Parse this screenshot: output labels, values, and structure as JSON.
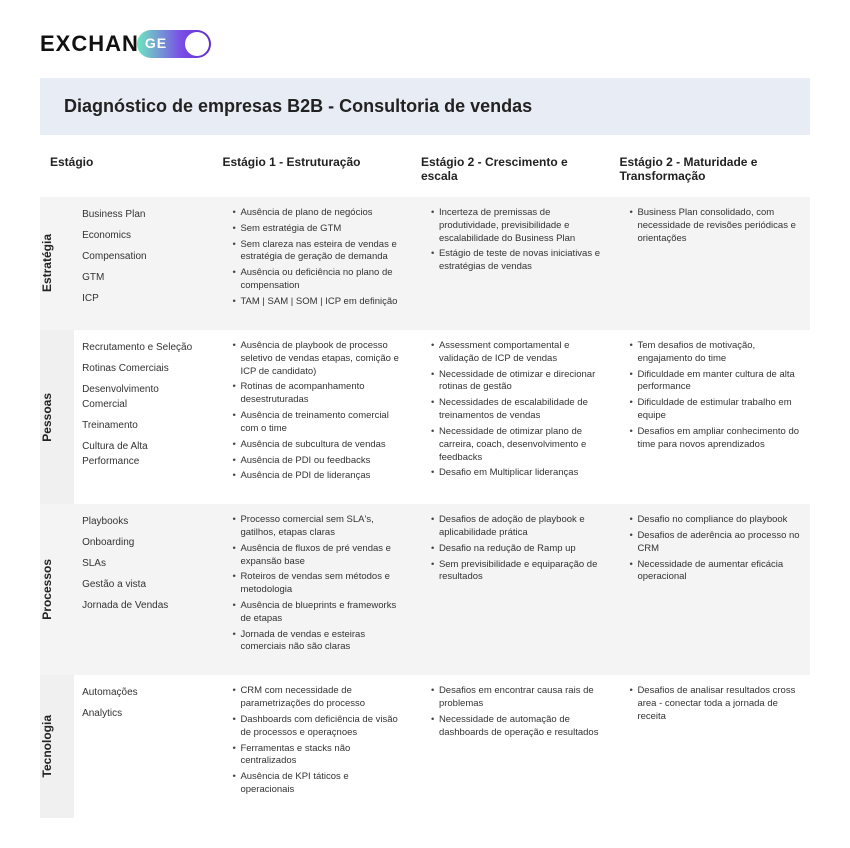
{
  "logo": {
    "left": "EXCHAN",
    "badge": "GE"
  },
  "title": "Diagnóstico de empresas B2B - Consultoria de vendas",
  "headers": {
    "stage": "Estágio",
    "s1": "Estágio 1 - Estruturação",
    "s2": "Estágio 2 - Crescimento e escala",
    "s3": "Estágio 2 - Maturidade e Transformação"
  },
  "rows": [
    {
      "label": "Estratégia",
      "sub": [
        "Business Plan",
        "Economics",
        "Compensation",
        "GTM",
        "ICP"
      ],
      "s1": [
        "Ausência de plano de negócios",
        "Sem estratégia de GTM",
        "Sem clareza nas esteira de vendas e estratégia de geração de demanda",
        "Ausência ou deficiência no plano de compensation",
        "TAM | SAM | SOM | ICP em definição"
      ],
      "s2": [
        "Incerteza de premissas de produtividade, previsibilidade e escalabilidade do Business Plan",
        "Estágio de teste de novas iniciativas e estratégias de vendas"
      ],
      "s3": [
        "Business Plan consolidado, com necessidade de revisões periódicas e orientações"
      ]
    },
    {
      "label": "Pessoas",
      "sub": [
        "Recrutamento e Seleção",
        "Rotinas Comerciais",
        "Desenvolvimento Comercial",
        "Treinamento",
        "Cultura de Alta Performance"
      ],
      "s1": [
        "Ausência de playbook de processo seletivo de vendas etapas, comição e ICP de candidato)",
        "Rotinas de acompanhamento desestruturadas",
        "Ausência de treinamento comercial com o time",
        "Ausência de subcultura de vendas",
        "Ausência de PDI ou feedbacks",
        "Ausência de PDI de lideranças"
      ],
      "s2": [
        "Assessment comportamental e validação de ICP de vendas",
        "Necessidade de otimizar e direcionar rotinas de gestão",
        "Necessidades de escalabilidade de treinamentos de vendas",
        "Necessidade de otimizar plano de carreira, coach, desenvolvimento e feedbacks",
        "Desafio em Multiplicar lideranças"
      ],
      "s3": [
        "Tem desafios de motivação, engajamento do time",
        "Dificuldade em manter cultura de alta performance",
        "Dificuldade de estimular trabalho em equipe",
        "Desafios em ampliar conhecimento do time para novos aprendizados"
      ]
    },
    {
      "label": "Processos",
      "sub": [
        "Playbooks",
        "Onboarding",
        "SLAs",
        "Gestão a vista",
        "Jornada de Vendas"
      ],
      "s1": [
        "Processo comercial sem SLA's, gatilhos, etapas claras",
        "Ausência de fluxos de pré vendas e expansão base",
        "Roteiros de vendas sem métodos e metodologia",
        "Ausência de blueprints e frameworks de etapas",
        "Jornada de vendas e esteiras comerciais não são claras"
      ],
      "s2": [
        "Desafios de adoção de playbook e aplicabilidade prática",
        "Desafio na redução de Ramp up",
        "Sem previsibilidade e equiparação de resultados"
      ],
      "s3": [
        "Desafio no compliance do playbook",
        "Desafios de aderência ao processo no CRM",
        "Necessidade de aumentar eficácia operacional"
      ]
    },
    {
      "label": "Tecnologia",
      "sub": [
        "Automações",
        "Analytics"
      ],
      "s1": [
        "CRM com necessidade de parametrizações do processo",
        "Dashboards com deficiência de visão de processos e operaçnoes",
        "Ferramentas e stacks não centralizados",
        "Ausência de KPI táticos e operacionais"
      ],
      "s2": [
        "Desafios em encontrar causa rais de problemas",
        "Necessidade de automação de dashboards de operação e resultados"
      ],
      "s3": [
        "Desafios de analisar resultados cross area - conectar toda a jornada de receita"
      ]
    }
  ],
  "colors": {
    "title_bg": "#e7ecf5",
    "row_alt_bg": "#f4f4f4",
    "text": "#333333"
  }
}
